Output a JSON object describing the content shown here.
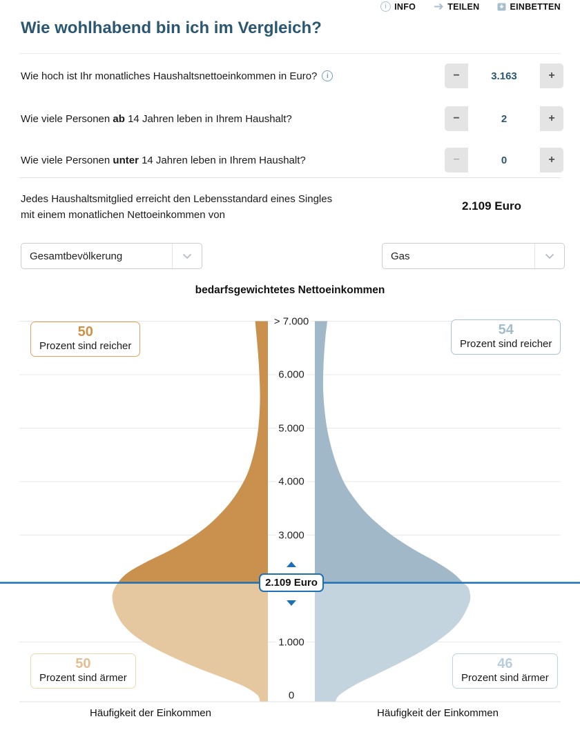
{
  "header": {
    "links": [
      {
        "label": "INFO",
        "icon": "info-icon"
      },
      {
        "label": "TEILEN",
        "icon": "share-arrow-icon"
      },
      {
        "label": "EINBETTEN",
        "icon": "embed-icon"
      }
    ]
  },
  "title": "Wie wohlhabend bin ich im Vergleich?",
  "questions": [
    {
      "prefix": "Wie hoch ist Ihr monatliches Haushaltsnettoeinkommen in Euro?",
      "bold": "",
      "suffix": "",
      "value": "3.163"
    },
    {
      "prefix": "Wie viele Personen ",
      "bold": "ab",
      "suffix": " 14 Jahren leben in Ihrem Haushalt?",
      "value": "2"
    },
    {
      "prefix": "Wie viele Personen ",
      "bold": "unter",
      "suffix": " 14 Jahren leben in Ihrem Haushalt?",
      "value": "0"
    }
  ],
  "stepper": {
    "minus_label": "−",
    "plus_label": "+"
  },
  "result": {
    "line1": "Jedes Haushaltsmitglied erreicht den Lebensstandard eines Singles",
    "line2": "mit einem monatlichen Nettoeinkommen von",
    "value": "2.109 Euro"
  },
  "selects": [
    {
      "value": "Gesamtbevölkerung"
    },
    {
      "value": "Gas"
    }
  ],
  "chart_data": {
    "type": "violin",
    "title": "bedarfsgewichtetes Nettoeinkommen",
    "x_axis_label": "Häufigkeit der Einkommen",
    "axis": {
      "y_min": 0,
      "y_max": 7000,
      "top_clipped": true
    },
    "y_ticks": [
      {
        "label": "> 7.000",
        "value": 7000
      },
      {
        "label": "6.000",
        "value": 6000
      },
      {
        "label": "5.000",
        "value": 5000
      },
      {
        "label": "4.000",
        "value": 4000
      },
      {
        "label": "3.000",
        "value": 3000
      },
      {
        "label": "1.000",
        "value": 1000
      },
      {
        "label": "0",
        "value": 0
      }
    ],
    "y_gridlines": [
      7000,
      6000,
      5000,
      4000,
      3000,
      1000
    ],
    "median": {
      "value": 2109,
      "label": "2.109 Euro",
      "color": "#1d70b4"
    },
    "badges": {
      "richer_label": "Prozent sind reicher",
      "poorer_label": "Prozent sind ärmer"
    },
    "series": [
      {
        "name": "Gesamtbevölkerung",
        "position": "left",
        "color_above": "#c9914d",
        "color_below": "#e5c89f",
        "richer": {
          "value": 50,
          "color": "#cf9044",
          "border": "#dda35f"
        },
        "poorer": {
          "value": 50,
          "color": "#e2bf92",
          "border": "#eed7b0"
        },
        "profile": [
          [
            -150,
            0.05
          ],
          [
            0,
            0.065
          ],
          [
            150,
            0.14
          ],
          [
            300,
            0.26
          ],
          [
            500,
            0.44
          ],
          [
            700,
            0.6
          ],
          [
            900,
            0.74
          ],
          [
            1100,
            0.85
          ],
          [
            1300,
            0.925
          ],
          [
            1500,
            0.97
          ],
          [
            1700,
            0.995
          ],
          [
            1900,
            1.0
          ],
          [
            2109,
            0.965
          ],
          [
            2300,
            0.9
          ],
          [
            2500,
            0.78
          ],
          [
            2700,
            0.64
          ],
          [
            2900,
            0.52
          ],
          [
            3100,
            0.42
          ],
          [
            3300,
            0.34
          ],
          [
            3600,
            0.245
          ],
          [
            3900,
            0.175
          ],
          [
            4200,
            0.125
          ],
          [
            4600,
            0.085
          ],
          [
            5000,
            0.062
          ],
          [
            5500,
            0.051
          ],
          [
            6000,
            0.055
          ],
          [
            6500,
            0.066
          ],
          [
            7000,
            0.082
          ],
          [
            7500,
            0.095
          ]
        ]
      },
      {
        "name": "Gas",
        "position": "right",
        "color_above": "#a1b8c8",
        "color_below": "#c3d4df",
        "richer": {
          "value": 54,
          "color": "#a2bcce",
          "border": "#a6c3d5"
        },
        "poorer": {
          "value": 46,
          "color": "#b9cedc",
          "border": "#bfd3df"
        },
        "profile": [
          [
            -150,
            0.13
          ],
          [
            0,
            0.155
          ],
          [
            200,
            0.26
          ],
          [
            400,
            0.4
          ],
          [
            600,
            0.54
          ],
          [
            800,
            0.67
          ],
          [
            1000,
            0.78
          ],
          [
            1200,
            0.87
          ],
          [
            1400,
            0.935
          ],
          [
            1600,
            0.975
          ],
          [
            1800,
            1.0
          ],
          [
            2000,
            0.99
          ],
          [
            2109,
            0.955
          ],
          [
            2300,
            0.885
          ],
          [
            2500,
            0.78
          ],
          [
            2700,
            0.655
          ],
          [
            2900,
            0.545
          ],
          [
            3100,
            0.45
          ],
          [
            3400,
            0.335
          ],
          [
            3700,
            0.25
          ],
          [
            4000,
            0.185
          ],
          [
            4400,
            0.13
          ],
          [
            4800,
            0.092
          ],
          [
            5200,
            0.068
          ],
          [
            5700,
            0.054
          ],
          [
            6200,
            0.056
          ],
          [
            6700,
            0.068
          ],
          [
            7000,
            0.08
          ],
          [
            7500,
            0.094
          ]
        ]
      }
    ]
  }
}
